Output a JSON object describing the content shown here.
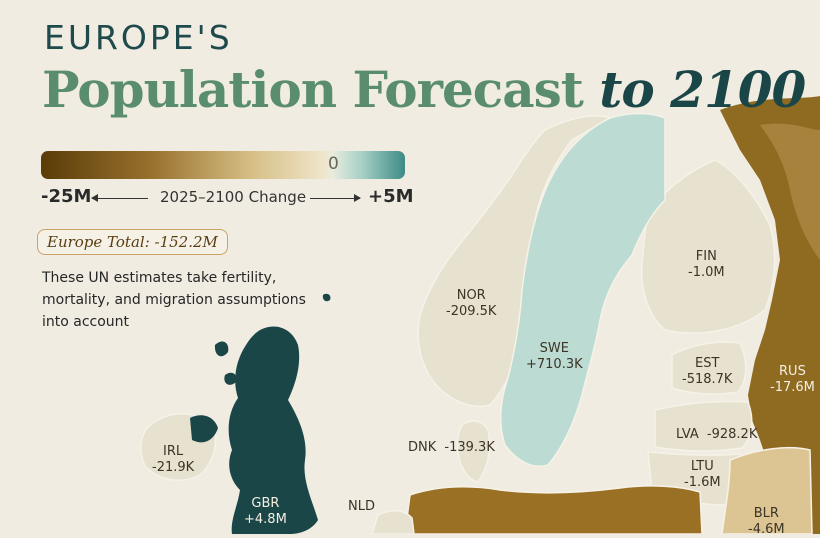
{
  "header": {
    "kicker": "EUROPE'S",
    "title_main": "Population Forecast",
    "title_accent": "to 2100"
  },
  "legend": {
    "min_label": "-25M",
    "max_label": "+5M",
    "zero_label": "0",
    "caption": "2025–2100 Change",
    "colors": {
      "negative": "#5a3c08",
      "neutral": "#efe6cc",
      "positive": "#3e8a86"
    }
  },
  "summary": {
    "total": "Europe Total: -152.2M",
    "note": "These UN estimates take fertility, mortality, and migration assumptions into account"
  },
  "countries": [
    {
      "code": "NOR",
      "value": "-209.5K",
      "change_millions": -0.2095
    },
    {
      "code": "SWE",
      "value": "+710.3K",
      "change_millions": 0.7103
    },
    {
      "code": "FIN",
      "value": "-1.0M",
      "change_millions": -1.0
    },
    {
      "code": "EST",
      "value": "-518.7K",
      "change_millions": -0.5187
    },
    {
      "code": "RUS",
      "value": "-17.6M",
      "change_millions": -17.6
    },
    {
      "code": "LVA",
      "value": "-928.2K",
      "change_millions": -0.9282
    },
    {
      "code": "LTU",
      "value": "-1.6M",
      "change_millions": -1.6
    },
    {
      "code": "BLR",
      "value": "-4.6M",
      "change_millions": -4.6
    },
    {
      "code": "DNK",
      "value": "-139.3K",
      "change_millions": -0.1393
    },
    {
      "code": "IRL",
      "value": "-21.9K",
      "change_millions": -0.0219
    },
    {
      "code": "GBR",
      "value": "+4.8M",
      "change_millions": 4.8
    },
    {
      "code": "NLD",
      "value": ""
    }
  ]
}
